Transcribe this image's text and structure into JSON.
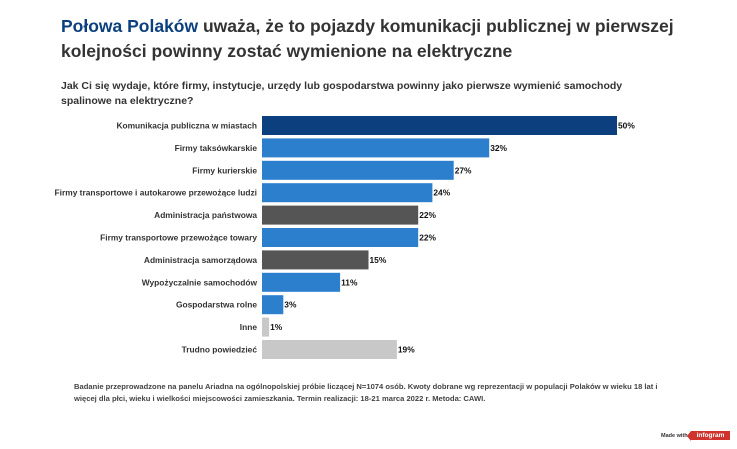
{
  "title": {
    "highlight": "Połowa Polaków",
    "rest": " uważa, że to pojazdy komunikacji publicznej w pierwszej kolejności powinny zostać wymienione na elektryczne"
  },
  "question": "Jak Ci się wydaje, które firmy, instytucje, urzędy lub gospodarstwa powinny jako pierwsze wymienić samochody spalinowe na elektryczne?",
  "chart_data": {
    "type": "bar",
    "orientation": "horizontal",
    "categories": [
      "Komunikacja publiczna w miastach",
      "Firmy taksówkarskie",
      "Firmy kurierskie",
      "Firmy transportowe i autokarowe przewożące ludzi",
      "Administracja państwowa",
      "Firmy transportowe przewożące towary",
      "Administracja samorządowa",
      "Wypożyczalnie samochodów",
      "Gospodarstwa rolne",
      "Inne",
      "Trudno powiedzieć"
    ],
    "values": [
      50,
      32,
      27,
      24,
      22,
      22,
      15,
      11,
      3,
      1,
      19
    ],
    "value_labels": [
      "50%",
      "32%",
      "27%",
      "24%",
      "22%",
      "22%",
      "15%",
      "11%",
      "3%",
      "1%",
      "19%"
    ],
    "bar_colors": [
      "#0b3f7e",
      "#2b7fcd",
      "#2b7fcd",
      "#2b7fcd",
      "#555555",
      "#2b7fcd",
      "#555555",
      "#2b7fcd",
      "#2b7fcd",
      "#c8c8c8",
      "#c8c8c8"
    ],
    "xlim": [
      0,
      50
    ],
    "grid": false,
    "legend": "none"
  },
  "footnote": "Badanie przeprowadzone na panelu Ariadna na ogólnopolskiej próbie liczącej N=1074 osób. Kwoty dobrane wg reprezentacji w populacji Polaków w wieku 18 lat i więcej dla płci, wieku i wielkości miejscowości zamieszkania. Termin realizacji: 18-21 marca 2022 r. Metoda: CAWI.",
  "branding": {
    "made_with": "Made with",
    "name": "infogram"
  },
  "colors": {
    "highlight": "#0b3f7e",
    "brand": "#d0322d"
  }
}
